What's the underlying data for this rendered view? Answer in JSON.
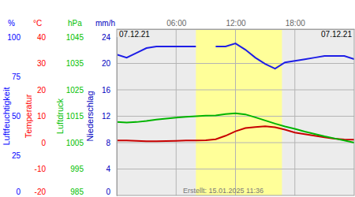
{
  "chart_data": {
    "type": "line",
    "x": [
      0,
      1,
      2,
      3,
      4,
      5,
      6,
      7,
      8,
      9,
      10,
      11,
      12,
      13,
      14,
      15,
      16,
      17,
      18,
      19,
      20,
      21,
      22,
      23,
      24
    ],
    "xlim": [
      0,
      24
    ],
    "xticks": [
      {
        "value": 6,
        "label": "06:00"
      },
      {
        "value": 12,
        "label": "12:00"
      },
      {
        "value": 18,
        "label": "18:00"
      }
    ],
    "grid": true,
    "y_axes": [
      {
        "title": "Luftfeuchtigkeit",
        "unit": "%",
        "color": "#0000ff",
        "ylim": [
          0,
          100
        ],
        "yticks": [
          0,
          25,
          50,
          75,
          100
        ]
      },
      {
        "title": "Temperatur",
        "unit": "°C",
        "color": "#ff0000",
        "ylim": [
          -20,
          40
        ],
        "yticks": [
          -20,
          -10,
          0,
          10,
          20,
          30,
          40
        ]
      },
      {
        "title": "Luftdruck",
        "unit": "hPa",
        "color": "#00c000",
        "ylim": [
          985,
          1045
        ],
        "yticks": [
          985,
          995,
          1005,
          1015,
          1025,
          1035,
          1045
        ]
      },
      {
        "title": "Niederschlag",
        "unit": "mm/h",
        "color": "#0000c0",
        "ylim": [
          0,
          24
        ],
        "yticks": [
          0,
          4,
          8,
          12,
          16,
          20,
          24
        ]
      }
    ],
    "series": [
      {
        "axis": 0,
        "color": "#1e1ee6",
        "values": [
          89,
          87,
          90,
          93,
          94,
          94,
          94,
          94,
          94,
          null,
          94,
          94,
          96,
          92,
          87,
          83,
          80,
          84,
          85,
          86,
          87,
          88,
          88,
          88,
          86
        ]
      },
      {
        "axis": 1,
        "color": "#c80000",
        "values": [
          0.8,
          0.8,
          0.7,
          0.5,
          0.5,
          0.6,
          0.7,
          0.8,
          0.8,
          0.9,
          1.3,
          2.6,
          4.3,
          5.5,
          5.9,
          6.2,
          5.8,
          4.9,
          3.8,
          3.2,
          2.6,
          2.0,
          1.5,
          1.2,
          1.1
        ]
      },
      {
        "axis": 2,
        "color": "#00b400",
        "values": [
          1012.8,
          1012.6,
          1012.8,
          1013.2,
          1013.7,
          1014.1,
          1014.5,
          1014.8,
          1015.0,
          1015.2,
          1015.3,
          1015.8,
          1016.1,
          1015.7,
          1014.6,
          1013.4,
          1012.2,
          1011.1,
          1010.2,
          1009.2,
          1008.3,
          1007.4,
          1006.6,
          1005.8,
          1005.0
        ]
      }
    ],
    "daylight": [
      8.0,
      16.7
    ],
    "annotations": [
      "07.12.21",
      "07.12.21",
      "Erstellt: 15.01.2025 11:36"
    ]
  }
}
